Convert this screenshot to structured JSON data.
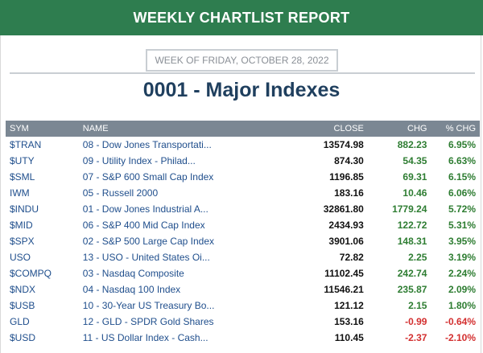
{
  "header": {
    "title": "WEEKLY CHARTLIST REPORT"
  },
  "week_label": "WEEK OF FRIDAY, OCTOBER 28, 2022",
  "list_title": "0001 - Major Indexes",
  "columns": {
    "sym": "SYM",
    "name": "NAME",
    "close": "CLOSE",
    "chg": "CHG",
    "pct": "% CHG"
  },
  "colors": {
    "banner": "#2e7d4f",
    "positive": "#2e7d32",
    "negative": "#d32f2f",
    "link": "#1f4e8c"
  },
  "rows": [
    {
      "sym": "$TRAN",
      "name": "08 - Dow Jones Transportati...",
      "close": "13574.98",
      "chg": "882.23",
      "pct": "6.95%",
      "dir": "pos"
    },
    {
      "sym": "$UTY",
      "name": "09 - Utility Index - Philad...",
      "close": "874.30",
      "chg": "54.35",
      "pct": "6.63%",
      "dir": "pos"
    },
    {
      "sym": "$SML",
      "name": "07 - S&P 600 Small Cap Index",
      "close": "1196.85",
      "chg": "69.31",
      "pct": "6.15%",
      "dir": "pos"
    },
    {
      "sym": "IWM",
      "name": "05 - Russell 2000",
      "close": "183.16",
      "chg": "10.46",
      "pct": "6.06%",
      "dir": "pos"
    },
    {
      "sym": "$INDU",
      "name": "01 - Dow Jones Industrial A...",
      "close": "32861.80",
      "chg": "1779.24",
      "pct": "5.72%",
      "dir": "pos"
    },
    {
      "sym": "$MID",
      "name": "06 - S&P 400 Mid Cap Index",
      "close": "2434.93",
      "chg": "122.72",
      "pct": "5.31%",
      "dir": "pos"
    },
    {
      "sym": "$SPX",
      "name": "02 - S&P 500 Large Cap Index",
      "close": "3901.06",
      "chg": "148.31",
      "pct": "3.95%",
      "dir": "pos"
    },
    {
      "sym": "USO",
      "name": "13 - USO - United States Oi...",
      "close": "72.82",
      "chg": "2.25",
      "pct": "3.19%",
      "dir": "pos"
    },
    {
      "sym": "$COMPQ",
      "name": "03 - Nasdaq Composite",
      "close": "11102.45",
      "chg": "242.74",
      "pct": "2.24%",
      "dir": "pos"
    },
    {
      "sym": "$NDX",
      "name": "04 - Nasdaq 100 Index",
      "close": "11546.21",
      "chg": "235.87",
      "pct": "2.09%",
      "dir": "pos"
    },
    {
      "sym": "$USB",
      "name": "10 - 30-Year US Treasury Bo...",
      "close": "121.12",
      "chg": "2.15",
      "pct": "1.80%",
      "dir": "pos"
    },
    {
      "sym": "GLD",
      "name": "12 - GLD - SPDR Gold Shares",
      "close": "153.16",
      "chg": "-0.99",
      "pct": "-0.64%",
      "dir": "neg"
    },
    {
      "sym": "$USD",
      "name": "11 - US Dollar Index - Cash...",
      "close": "110.45",
      "chg": "-2.37",
      "pct": "-2.10%",
      "dir": "neg"
    }
  ]
}
